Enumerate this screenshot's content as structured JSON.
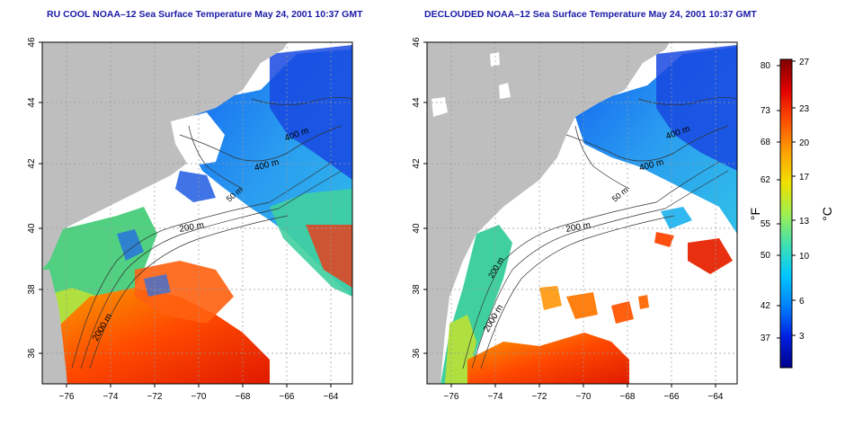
{
  "maps": [
    {
      "title": "RU COOL NOAA–12 Sea Surface Temperature May 24, 2001 10:37 GMT",
      "x_ticks": [
        "−76",
        "−74",
        "−72",
        "−70",
        "−68",
        "−66",
        "−64"
      ],
      "y_ticks": [
        "36",
        "38",
        "40",
        "42",
        "44",
        "46"
      ],
      "contour_labels": [
        "400 m",
        "400 m",
        "50 m",
        "200 m",
        "2000 m"
      ]
    },
    {
      "title": "DECLOUDED NOAA–12 Sea Surface Temperature May 24, 2001 10:37 GMT",
      "x_ticks": [
        "−76",
        "−74",
        "−72",
        "−70",
        "−68",
        "−66",
        "−64"
      ],
      "y_ticks": [
        "36",
        "38",
        "40",
        "42",
        "44",
        "46"
      ],
      "contour_labels": [
        "400 m",
        "400 m",
        "50 m",
        "200 m",
        "200 m",
        "2000 m"
      ]
    }
  ],
  "colorbar": {
    "left_unit": "°F",
    "right_unit": "°C",
    "fahrenheit_ticks": [
      "80",
      "73",
      "68",
      "62",
      "55",
      "50",
      "42",
      "37"
    ],
    "celsius_ticks": [
      "27",
      "23",
      "20",
      "17",
      "13",
      "10",
      "6",
      "3"
    ],
    "colors": [
      "#800000",
      "#e00000",
      "#ff5000",
      "#ffa000",
      "#f0e000",
      "#a0f050",
      "#40e0b0",
      "#00c8ff",
      "#0080ff",
      "#0020e0",
      "#00008c"
    ]
  },
  "colors": {
    "land": "#bebebe",
    "cloud": "#ffffff",
    "title": "#1a1aa8"
  }
}
